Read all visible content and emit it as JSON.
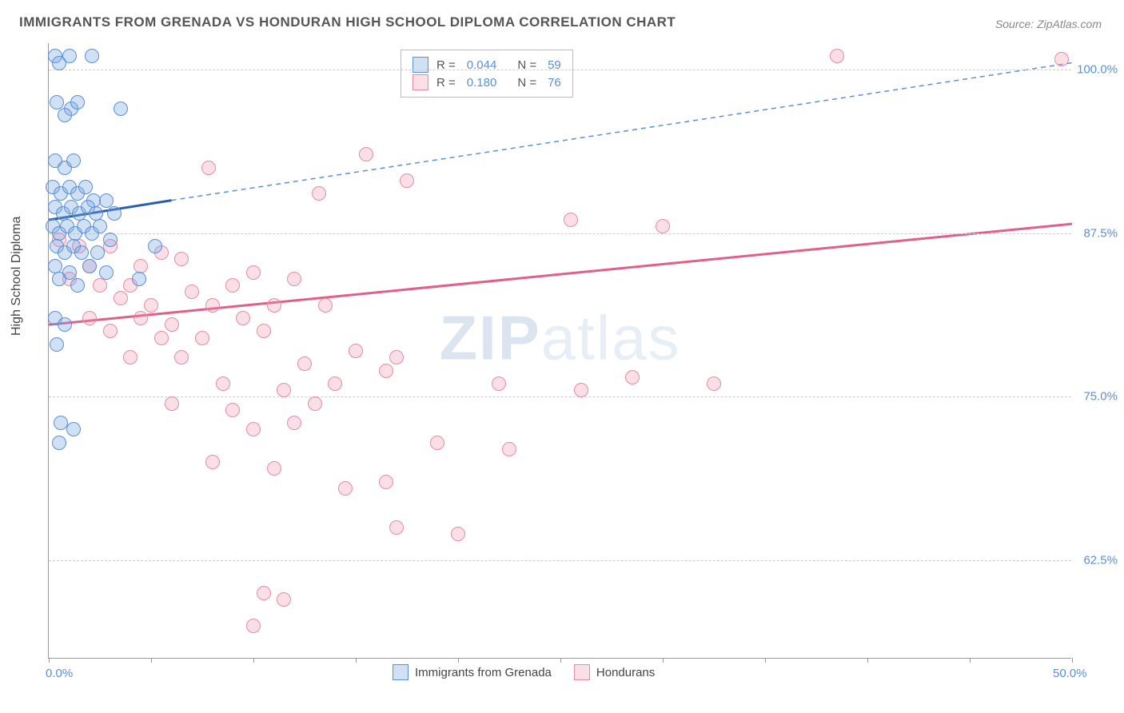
{
  "title": "IMMIGRANTS FROM GRENADA VS HONDURAN HIGH SCHOOL DIPLOMA CORRELATION CHART",
  "source_prefix": "Source: ",
  "source_name": "ZipAtlas.com",
  "ylabel": "High School Diploma",
  "watermark_bold": "ZIP",
  "watermark_light": "atlas",
  "chart": {
    "type": "scatter",
    "background_color": "#ffffff",
    "grid_color": "#cccccc",
    "axis_color": "#999999",
    "xlim": [
      0,
      50
    ],
    "ylim": [
      55,
      102
    ],
    "xticks": [
      0,
      5,
      10,
      15,
      20,
      25,
      30,
      35,
      40,
      45,
      50
    ],
    "xtick_labels": {
      "0": "0.0%",
      "50": "50.0%"
    },
    "yticks": [
      62.5,
      75.0,
      87.5,
      100.0
    ],
    "ytick_labels": [
      "62.5%",
      "75.0%",
      "87.5%",
      "100.0%"
    ],
    "marker_size": 18,
    "series_a": {
      "name": "Immigrants from Grenada",
      "color_fill": "rgba(120,170,230,0.35)",
      "color_stroke": "#5b8fd6",
      "R": "0.044",
      "N": "59",
      "trend_solid": {
        "x1": 0,
        "y1": 88.5,
        "x2": 6,
        "y2": 90.0,
        "stroke": "#2b5dab",
        "width": 3
      },
      "trend_dash": {
        "x1": 6,
        "y1": 90.0,
        "x2": 50,
        "y2": 100.5,
        "stroke": "#5b8fd6",
        "width": 1.5,
        "dash": "6,5"
      },
      "points": [
        [
          0.3,
          101
        ],
        [
          1.0,
          101
        ],
        [
          2.1,
          101
        ],
        [
          0.5,
          100.5
        ],
        [
          0.4,
          97.5
        ],
        [
          1.1,
          97
        ],
        [
          1.4,
          97.5
        ],
        [
          0.8,
          96.5
        ],
        [
          3.5,
          97
        ],
        [
          0.3,
          93
        ],
        [
          0.8,
          92.5
        ],
        [
          1.2,
          93
        ],
        [
          0.2,
          91
        ],
        [
          0.6,
          90.5
        ],
        [
          1.0,
          91
        ],
        [
          1.4,
          90.5
        ],
        [
          1.8,
          91
        ],
        [
          2.2,
          90
        ],
        [
          0.3,
          89.5
        ],
        [
          0.7,
          89
        ],
        [
          1.1,
          89.5
        ],
        [
          1.5,
          89
        ],
        [
          1.9,
          89.5
        ],
        [
          2.3,
          89
        ],
        [
          2.8,
          90
        ],
        [
          3.2,
          89
        ],
        [
          0.2,
          88
        ],
        [
          0.5,
          87.5
        ],
        [
          0.9,
          88
        ],
        [
          1.3,
          87.5
        ],
        [
          1.7,
          88
        ],
        [
          2.1,
          87.5
        ],
        [
          2.5,
          88
        ],
        [
          3.0,
          87
        ],
        [
          0.4,
          86.5
        ],
        [
          0.8,
          86
        ],
        [
          1.2,
          86.5
        ],
        [
          1.6,
          86
        ],
        [
          2.4,
          86
        ],
        [
          5.2,
          86.5
        ],
        [
          0.3,
          85
        ],
        [
          1.0,
          84.5
        ],
        [
          2.0,
          85
        ],
        [
          2.8,
          84.5
        ],
        [
          0.5,
          84
        ],
        [
          1.4,
          83.5
        ],
        [
          4.4,
          84
        ],
        [
          0.3,
          81
        ],
        [
          0.8,
          80.5
        ],
        [
          0.4,
          79
        ],
        [
          0.6,
          73
        ],
        [
          1.2,
          72.5
        ],
        [
          0.5,
          71.5
        ]
      ]
    },
    "series_b": {
      "name": "Hondurans",
      "color_fill": "rgba(240,150,175,0.30)",
      "color_stroke": "#e78ba6",
      "R": "0.180",
      "N": "76",
      "trend_solid": {
        "x1": 0,
        "y1": 80.5,
        "x2": 50,
        "y2": 88.2,
        "stroke": "#e06088",
        "width": 3
      },
      "points": [
        [
          38.5,
          101
        ],
        [
          49.5,
          100.8
        ],
        [
          15.5,
          93.5
        ],
        [
          7.8,
          92.5
        ],
        [
          17.5,
          91.5
        ],
        [
          13.2,
          90.5
        ],
        [
          25.5,
          88.5
        ],
        [
          30.0,
          88
        ],
        [
          0.5,
          87
        ],
        [
          1.5,
          86.5
        ],
        [
          3.0,
          86.5
        ],
        [
          5.5,
          86
        ],
        [
          2.0,
          85
        ],
        [
          4.5,
          85
        ],
        [
          6.5,
          85.5
        ],
        [
          10.0,
          84.5
        ],
        [
          12.0,
          84
        ],
        [
          1.0,
          84
        ],
        [
          2.5,
          83.5
        ],
        [
          4.0,
          83.5
        ],
        [
          7.0,
          83
        ],
        [
          9.0,
          83.5
        ],
        [
          3.5,
          82.5
        ],
        [
          5.0,
          82
        ],
        [
          8.0,
          82
        ],
        [
          11.0,
          82
        ],
        [
          13.5,
          82
        ],
        [
          2.0,
          81
        ],
        [
          4.5,
          81
        ],
        [
          6.0,
          80.5
        ],
        [
          9.5,
          81
        ],
        [
          3.0,
          80
        ],
        [
          5.5,
          79.5
        ],
        [
          7.5,
          79.5
        ],
        [
          10.5,
          80
        ],
        [
          15.0,
          78.5
        ],
        [
          17.0,
          78
        ],
        [
          16.5,
          77
        ],
        [
          4.0,
          78
        ],
        [
          6.5,
          78
        ],
        [
          12.5,
          77.5
        ],
        [
          28.5,
          76.5
        ],
        [
          22.0,
          76
        ],
        [
          26.0,
          75.5
        ],
        [
          32.5,
          76
        ],
        [
          8.5,
          76
        ],
        [
          11.5,
          75.5
        ],
        [
          14.0,
          76
        ],
        [
          6.0,
          74.5
        ],
        [
          9.0,
          74
        ],
        [
          13.0,
          74.5
        ],
        [
          10.0,
          72.5
        ],
        [
          12.0,
          73
        ],
        [
          19.0,
          71.5
        ],
        [
          22.5,
          71
        ],
        [
          8.0,
          70
        ],
        [
          11.0,
          69.5
        ],
        [
          14.5,
          68
        ],
        [
          16.5,
          68.5
        ],
        [
          17.0,
          65
        ],
        [
          20.0,
          64.5
        ],
        [
          10.5,
          60
        ],
        [
          11.5,
          59.5
        ],
        [
          10.0,
          57.5
        ]
      ]
    }
  },
  "legend_box": {
    "r_label": "R =",
    "n_label": "N ="
  },
  "bottom_legend": {
    "a": "Immigrants from Grenada",
    "b": "Hondurans"
  }
}
